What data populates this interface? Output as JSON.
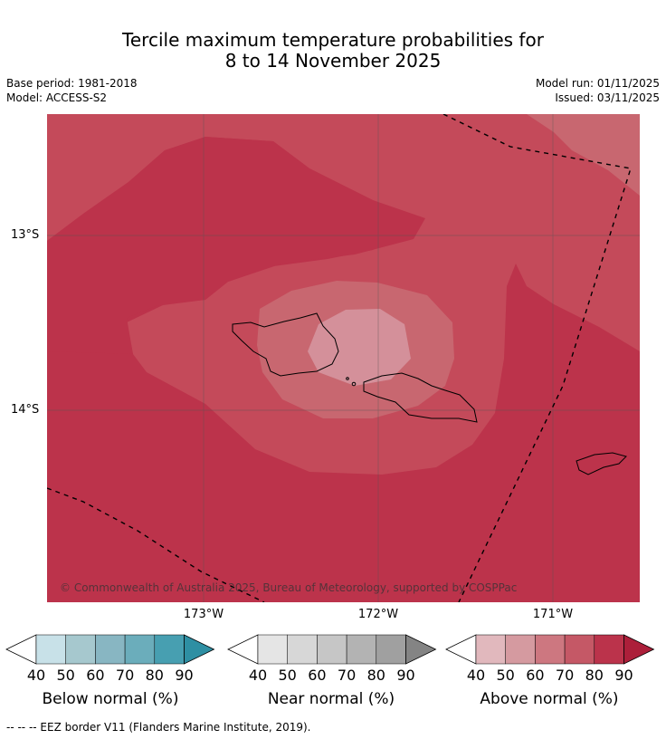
{
  "title": {
    "line1": "Tercile maximum temperature probabilities for",
    "line2": "8 to 14 November 2025"
  },
  "meta": {
    "base_period": "Base period: 1981-2018",
    "model": "Model: ACCESS-S2",
    "model_run": "Model run: 01/11/2025",
    "issued": "Issued: 03/11/2025"
  },
  "map": {
    "lon_labels": [
      "173°W",
      "172°W",
      "171°W"
    ],
    "lat_labels": [
      "13°S",
      "14°S"
    ],
    "copyright": "© Commonwealth of Australia 2025, Bureau of Meteorology, supported by COSPPac",
    "colors": {
      "above_80_90": "#bc334b",
      "above_70_80": "#c44a5a",
      "above_60_70": "#c86770",
      "above_50_60": "#d4909a",
      "ocean_gridline": "#555555"
    }
  },
  "colorbars": [
    {
      "title": "Below normal (%)",
      "ticks": [
        "40",
        "50",
        "60",
        "70",
        "80",
        "90"
      ],
      "colors": [
        "#ffffff",
        "#c8e1e8",
        "#a6c8ce",
        "#88b6c2",
        "#6badbb",
        "#479fb1",
        "#2e8fa3"
      ]
    },
    {
      "title": "Near normal (%)",
      "ticks": [
        "40",
        "50",
        "60",
        "70",
        "80",
        "90"
      ],
      "colors": [
        "#ffffff",
        "#e5e5e5",
        "#d7d7d7",
        "#c6c6c6",
        "#b3b3b3",
        "#a0a0a0",
        "#848484"
      ]
    },
    {
      "title": "Above normal (%)",
      "ticks": [
        "40",
        "50",
        "60",
        "70",
        "80",
        "90"
      ],
      "colors": [
        "#ffffff",
        "#e1b8bd",
        "#d59aa0",
        "#cd7780",
        "#c55866",
        "#bb334b",
        "#ac1f3a"
      ]
    }
  ],
  "footer": "--  --  -- EEZ border V11 (Flanders Marine Institute, 2019)."
}
